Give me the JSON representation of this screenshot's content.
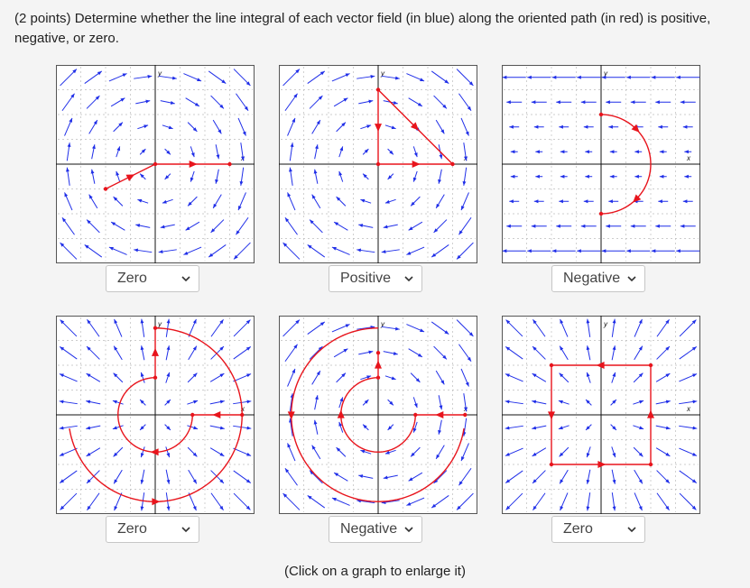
{
  "question": {
    "points": "(2 points)",
    "text": "Determine whether the line integral of each vector field (in blue) along the oriented path (in red) is positive, negative, or zero."
  },
  "colors": {
    "field": "#1f2ee8",
    "path": "#e8141c",
    "grid": "#bdbdbd",
    "axis": "#111111"
  },
  "axis_labels": {
    "x": "x",
    "y": "y"
  },
  "graphs": [
    {
      "field": "rot_neg",
      "answer": "Zero"
    },
    {
      "field": "rot_neg",
      "answer": "Positive"
    },
    {
      "field": "horizontal_left",
      "answer": "Negative"
    },
    {
      "field": "radial_out",
      "answer": "Zero"
    },
    {
      "field": "rot_neg",
      "answer": "Negative"
    },
    {
      "field": "radial_out",
      "answer": "Zero"
    }
  ],
  "dropdown_icon": "chevron-down-icon",
  "footnote": "(Click on a graph to enlarge it)"
}
